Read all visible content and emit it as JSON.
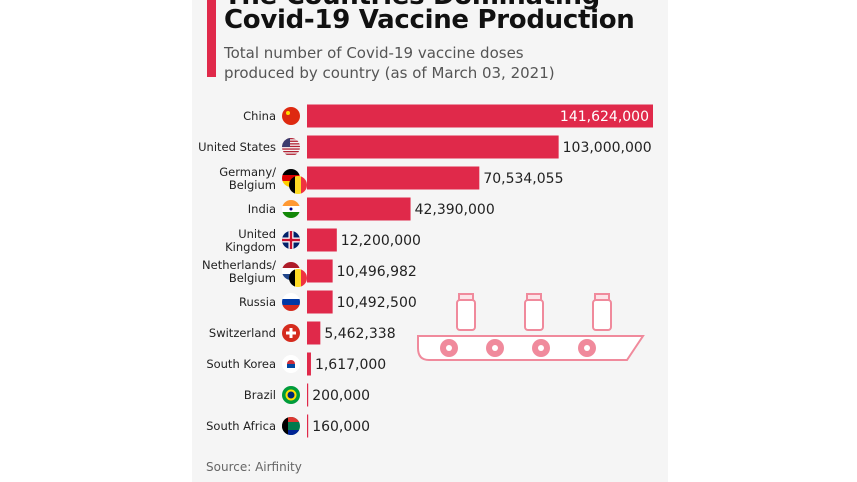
{
  "header": {
    "title_line1": "The Countries Dominating",
    "title_line2": "Covid-19 Vaccine Production",
    "subtitle_line1": "Total number of Covid-19 vaccine doses",
    "subtitle_line2": "produced by country (as of March 03, 2021)"
  },
  "source": "Source: Airfinity",
  "colors": {
    "bar": "#e0294a",
    "accent": "#e0294a",
    "illustration": "#f08a9c"
  },
  "chart_data": {
    "type": "bar",
    "orientation": "horizontal",
    "categories": [
      "China",
      "United States",
      "Germany/ Belgium",
      "India",
      "United Kingdom",
      "Netherlands/ Belgium",
      "Russia",
      "Switzerland",
      "South Korea",
      "Brazil",
      "South Africa"
    ],
    "flags": [
      "china-flag",
      "usa-flag",
      "germany-belgium-flags",
      "india-flag",
      "uk-flag",
      "netherlands-belgium-flags",
      "russia-flag",
      "switzerland-flag",
      "south-korea-flag",
      "brazil-flag",
      "south-africa-flag"
    ],
    "values": [
      141624000,
      103000000,
      70534055,
      42390000,
      12200000,
      10496982,
      10492500,
      5462338,
      1617000,
      200000,
      160000
    ],
    "value_labels": [
      "141,624,000",
      "103,000,000",
      "70,534,055",
      "42,390,000",
      "12,200,000",
      "10,496,982",
      "10,492,500",
      "5,462,338",
      "1,617,000",
      "200,000",
      "160,000"
    ],
    "xlim": [
      0,
      141624000
    ],
    "grid": false,
    "legend": "none",
    "title": "Covid-19 Vaccine Production",
    "xlabel": "",
    "ylabel": ""
  }
}
